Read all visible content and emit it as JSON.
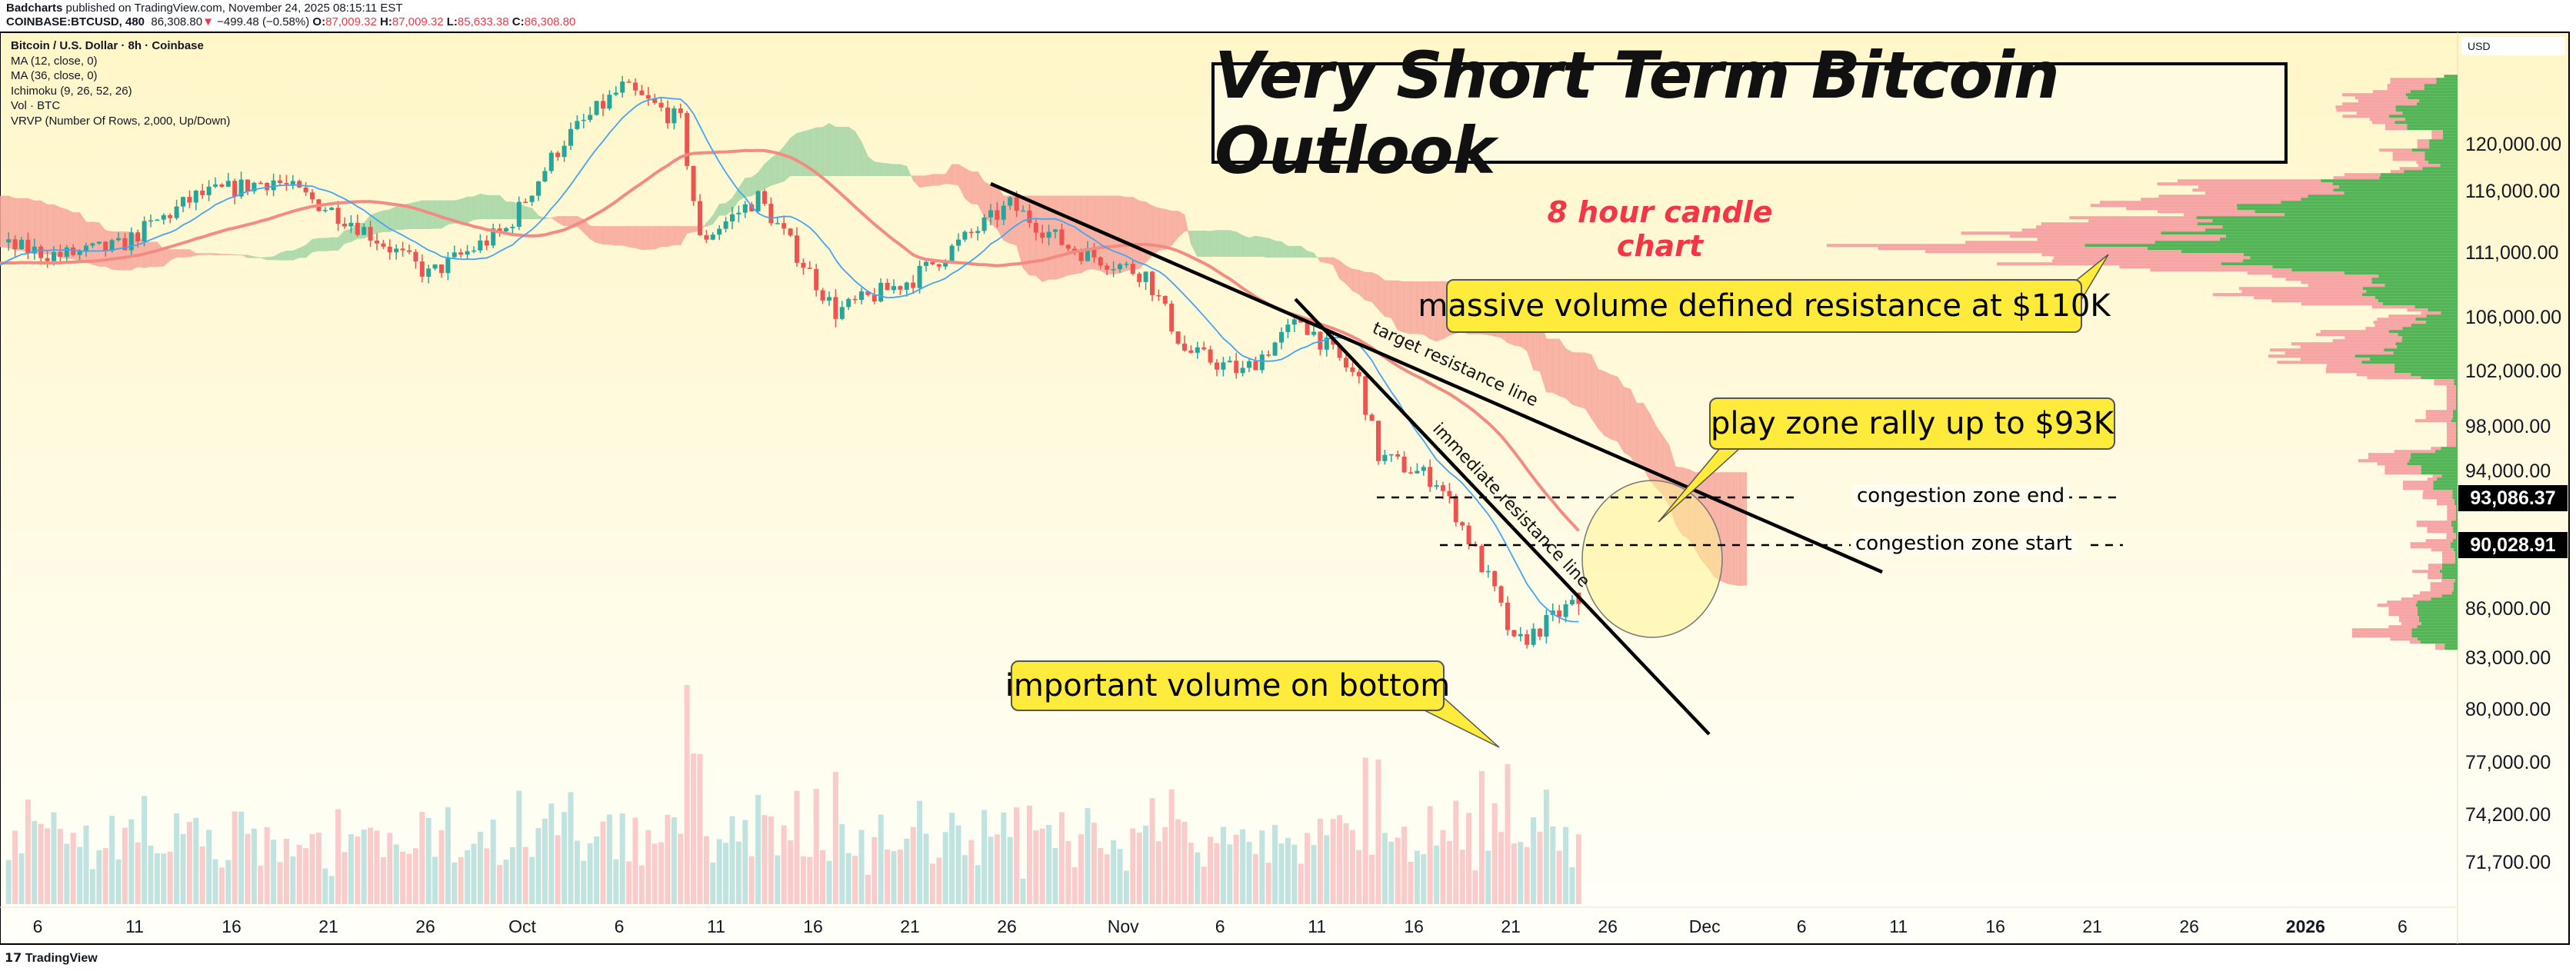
{
  "header": {
    "author": "Badcharts",
    "published": "published on TradingView.com, November 24, 2025 08:15:11 EST",
    "symbol": "COINBASE:BTCUSD, 480",
    "last": "86,308.80",
    "change_arrow": "▼",
    "change": "−499.48 (−0.58%)",
    "o_label": "O:",
    "o": "87,009.32",
    "h_label": "H:",
    "h": "87,009.32",
    "l_label": "L:",
    "l": "85,633.38",
    "c_label": "C:",
    "c": "86,308.80"
  },
  "legend": {
    "title": "Bitcoin / U.S. Dollar · 8h · Coinbase",
    "items": [
      "MA (12, close, 0)",
      "MA (36, close, 0)",
      "Ichimoku (9, 26, 52, 26)",
      "Vol · BTC",
      "VRVP (Number Of Rows, 2,000, Up/Down)"
    ]
  },
  "annotations": {
    "title": "Very Short Term Bitcoin Outlook",
    "subtitle": "8 hour candle chart",
    "callout_resistance": "massive volume defined resistance at $110K",
    "callout_play_zone": "play zone rally up to $93K",
    "callout_volume": "important volume on bottom",
    "target_line": "target resistance line",
    "immediate_line": "immediate resistance line",
    "congestion_end": "congestion zone end",
    "congestion_start": "congestion zone start"
  },
  "price_axis": {
    "currency": "USD",
    "ticks": [
      "120,000.00",
      "116,000.00",
      "111,000.00",
      "106,000.00",
      "102,000.00",
      "98,000.00",
      "94,000.00",
      "86,000.00",
      "83,000.00",
      "80,000.00",
      "77,000.00",
      "74,200.00",
      "71,700.00"
    ],
    "highlight_levels": [
      "93,086.37",
      "90,028.91"
    ]
  },
  "time_axis": {
    "ticks": [
      "6",
      "11",
      "16",
      "21",
      "26",
      "Oct",
      "6",
      "11",
      "16",
      "21",
      "26",
      "Nov",
      "6",
      "11",
      "16",
      "21",
      "26",
      "Dec",
      "6",
      "11",
      "16",
      "21",
      "26",
      "2026",
      "6"
    ]
  },
  "footer": {
    "brand": "TradingView"
  },
  "colors": {
    "up": "#26a69a",
    "down": "#ef5350",
    "vol_up": "#c0e3df",
    "vol_down": "#f9cbcb",
    "ma12": "#42a5f5",
    "ma36": "#f28b82",
    "cloud_bull": "#a5d6a7",
    "cloud_bear": "#f7a89c",
    "callout": "#ffeb3b",
    "subtitle": "#f23645"
  },
  "chart_data": {
    "type": "candlestick",
    "symbol": "COINBASE:BTCUSD",
    "interval": "8h",
    "y_scale": "log",
    "ylim": [
      70000,
      126000
    ],
    "xlim": [
      "2025-09-04",
      "2026-01-08"
    ],
    "approx_closes": [
      [
        "2025-09-04",
        111600
      ],
      [
        "2025-09-07",
        110800
      ],
      [
        "2025-09-10",
        111500
      ],
      [
        "2025-09-14",
        115600
      ],
      [
        "2025-09-18",
        117000
      ],
      [
        "2025-09-22",
        113600
      ],
      [
        "2025-09-26",
        109300
      ],
      [
        "2025-09-30",
        112900
      ],
      [
        "2025-10-03",
        120400
      ],
      [
        "2025-10-06",
        125000
      ],
      [
        "2025-10-09",
        122000
      ],
      [
        "2025-10-10",
        112000
      ],
      [
        "2025-10-13",
        115500
      ],
      [
        "2025-10-17",
        106400
      ],
      [
        "2025-10-21",
        109000
      ],
      [
        "2025-10-26",
        114900
      ],
      [
        "2025-10-29",
        111500
      ],
      [
        "2025-11-02",
        109300
      ],
      [
        "2025-11-04",
        103500
      ],
      [
        "2025-11-07",
        101900
      ],
      [
        "2025-11-10",
        105800
      ],
      [
        "2025-11-13",
        101300
      ],
      [
        "2025-11-14",
        96000
      ],
      [
        "2025-11-17",
        94300
      ],
      [
        "2025-11-18",
        92100
      ],
      [
        "2025-11-20",
        87000
      ],
      [
        "2025-11-21",
        83800
      ],
      [
        "2025-11-22",
        84500
      ],
      [
        "2025-11-24",
        86308.8
      ]
    ],
    "last_bar": {
      "open": 87009.32,
      "high": 87009.32,
      "low": 85633.38,
      "close": 86308.8
    },
    "levels": [
      {
        "label": "congestion zone end",
        "price": 93086.37
      },
      {
        "label": "congestion zone start",
        "price": 90028.91
      }
    ],
    "trendlines": [
      {
        "label": "target resistance line",
        "from": [
          "2025-10-26",
          116000
        ],
        "to": [
          "2025-12-02",
          88500
        ]
      },
      {
        "label": "immediate resistance line",
        "from": [
          "2025-11-10",
          107500
        ],
        "to": [
          "2025-12-02",
          78500
        ]
      }
    ],
    "indicators": [
      "MA 12",
      "MA 36",
      "Ichimoku (9, 26, 52, 26)",
      "Volume",
      "VRVP"
    ]
  }
}
